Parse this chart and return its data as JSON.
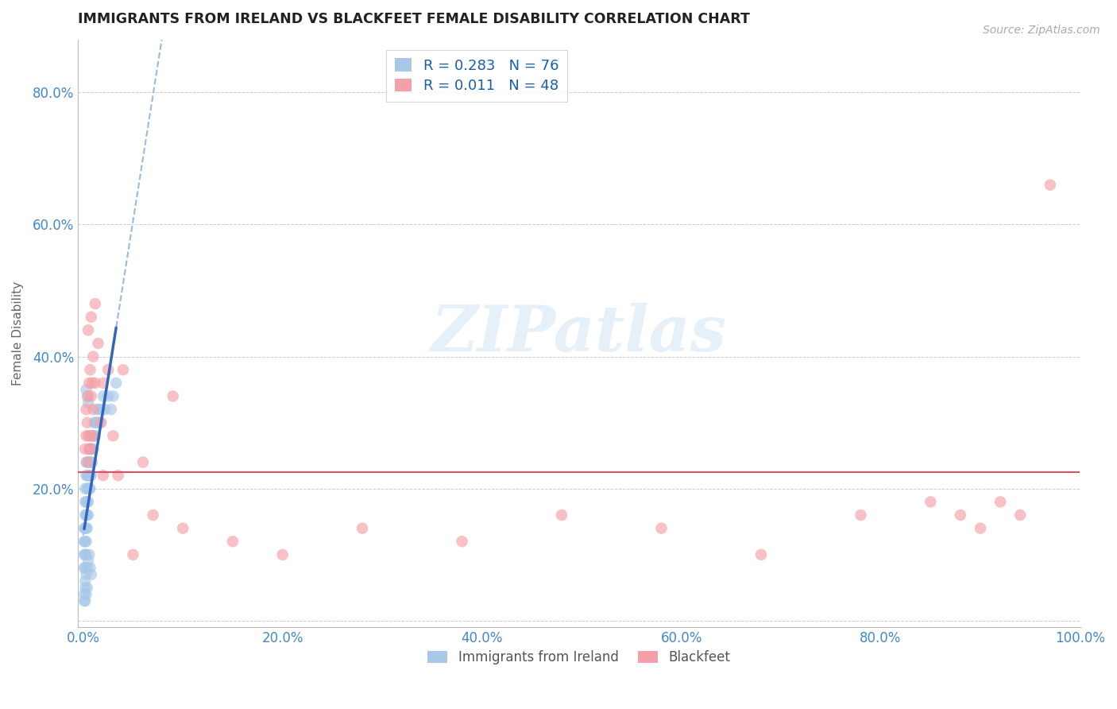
{
  "title": "IMMIGRANTS FROM IRELAND VS BLACKFEET FEMALE DISABILITY CORRELATION CHART",
  "source": "Source: ZipAtlas.com",
  "xlabel_blue": "Immigrants from Ireland",
  "xlabel_pink": "Blackfeet",
  "ylabel": "Female Disability",
  "R_blue": 0.283,
  "N_blue": 76,
  "R_pink": 0.011,
  "N_pink": 48,
  "color_blue": "#a8c8e8",
  "color_blue_dark": "#4488cc",
  "color_blue_line": "#3366bb",
  "color_pink": "#f4a0a8",
  "color_pink_line": "#e05060",
  "color_dashed": "#99bbdd",
  "tick_color": "#4488cc",
  "xlim": [
    0.0,
    1.0
  ],
  "ylim": [
    0.0,
    0.88
  ],
  "xtick_vals": [
    0.0,
    0.2,
    0.4,
    0.6,
    0.8,
    1.0
  ],
  "ytick_vals": [
    0.0,
    0.2,
    0.4,
    0.6,
    0.8
  ],
  "xticklabels": [
    "0.0%",
    "20.0%",
    "40.0%",
    "60.0%",
    "80.0%",
    "100.0%"
  ],
  "yticklabels": [
    "",
    "20.0%",
    "40.0%",
    "60.0%",
    "80.0%"
  ],
  "watermark": "ZIPatlas",
  "blue_x": [
    0.001,
    0.001,
    0.001,
    0.001,
    0.002,
    0.002,
    0.002,
    0.002,
    0.002,
    0.002,
    0.002,
    0.003,
    0.003,
    0.003,
    0.003,
    0.003,
    0.003,
    0.003,
    0.004,
    0.004,
    0.004,
    0.004,
    0.004,
    0.005,
    0.005,
    0.005,
    0.005,
    0.005,
    0.006,
    0.006,
    0.006,
    0.006,
    0.007,
    0.007,
    0.007,
    0.007,
    0.008,
    0.008,
    0.008,
    0.009,
    0.009,
    0.009,
    0.01,
    0.01,
    0.011,
    0.011,
    0.012,
    0.012,
    0.013,
    0.014,
    0.015,
    0.016,
    0.017,
    0.018,
    0.02,
    0.022,
    0.025,
    0.028,
    0.03,
    0.033,
    0.002,
    0.003,
    0.004,
    0.005,
    0.006,
    0.007,
    0.008,
    0.003,
    0.004,
    0.005,
    0.001,
    0.002,
    0.003,
    0.004,
    0.001,
    0.002
  ],
  "blue_y": [
    0.12,
    0.14,
    0.1,
    0.08,
    0.16,
    0.18,
    0.14,
    0.12,
    0.1,
    0.2,
    0.08,
    0.22,
    0.18,
    0.16,
    0.14,
    0.12,
    0.1,
    0.24,
    0.22,
    0.2,
    0.18,
    0.16,
    0.14,
    0.24,
    0.22,
    0.2,
    0.18,
    0.16,
    0.26,
    0.24,
    0.22,
    0.2,
    0.26,
    0.24,
    0.22,
    0.2,
    0.26,
    0.24,
    0.22,
    0.28,
    0.26,
    0.24,
    0.28,
    0.26,
    0.3,
    0.28,
    0.3,
    0.28,
    0.3,
    0.32,
    0.3,
    0.32,
    0.3,
    0.32,
    0.34,
    0.32,
    0.34,
    0.32,
    0.34,
    0.36,
    0.06,
    0.07,
    0.08,
    0.09,
    0.1,
    0.08,
    0.07,
    0.35,
    0.34,
    0.33,
    0.04,
    0.05,
    0.04,
    0.05,
    0.03,
    0.03
  ],
  "pink_x": [
    0.002,
    0.003,
    0.003,
    0.004,
    0.004,
    0.005,
    0.005,
    0.006,
    0.006,
    0.007,
    0.007,
    0.008,
    0.008,
    0.009,
    0.009,
    0.01,
    0.01,
    0.012,
    0.015,
    0.018,
    0.02,
    0.025,
    0.03,
    0.04,
    0.05,
    0.07,
    0.1,
    0.15,
    0.2,
    0.28,
    0.38,
    0.48,
    0.58,
    0.68,
    0.78,
    0.85,
    0.88,
    0.9,
    0.92,
    0.94,
    0.005,
    0.008,
    0.012,
    0.02,
    0.035,
    0.06,
    0.09,
    0.97
  ],
  "pink_y": [
    0.26,
    0.28,
    0.32,
    0.3,
    0.24,
    0.34,
    0.28,
    0.36,
    0.26,
    0.38,
    0.28,
    0.34,
    0.26,
    0.36,
    0.28,
    0.32,
    0.4,
    0.36,
    0.42,
    0.3,
    0.36,
    0.38,
    0.28,
    0.38,
    0.1,
    0.16,
    0.14,
    0.12,
    0.1,
    0.14,
    0.12,
    0.16,
    0.14,
    0.1,
    0.16,
    0.18,
    0.16,
    0.14,
    0.18,
    0.16,
    0.44,
    0.46,
    0.48,
    0.22,
    0.22,
    0.24,
    0.34,
    0.66
  ],
  "trendline_blue_x0": 0.0,
  "trendline_blue_y0": 0.205,
  "trendline_blue_x1": 1.0,
  "trendline_blue_y1": 0.72,
  "trendline_pink_y": 0.225
}
